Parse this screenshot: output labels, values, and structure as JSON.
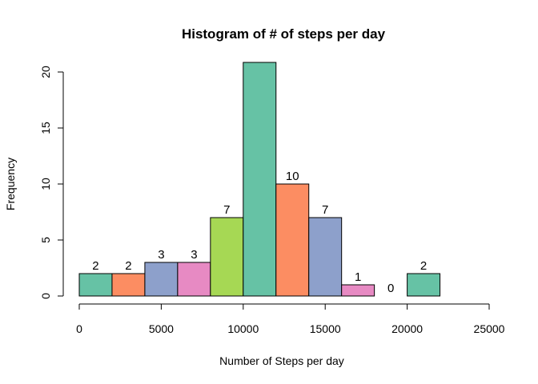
{
  "chart_data": {
    "type": "bar",
    "title": "Histogram of # of steps per day",
    "xlabel": "Number of Steps per day",
    "ylabel": "Frequency",
    "xlim": [
      0,
      25000
    ],
    "ylim": [
      0,
      20
    ],
    "x_ticks": [
      0,
      5000,
      10000,
      15000,
      20000,
      25000
    ],
    "y_ticks": [
      0,
      5,
      10,
      15,
      20
    ],
    "bins": [
      {
        "start": 0,
        "end": 2000,
        "value": 2,
        "color": "#66C2A5",
        "label": "2"
      },
      {
        "start": 2000,
        "end": 4000,
        "value": 2,
        "color": "#FC8D62",
        "label": "2"
      },
      {
        "start": 4000,
        "end": 6000,
        "value": 3,
        "color": "#8DA0CB",
        "label": "3"
      },
      {
        "start": 6000,
        "end": 8000,
        "value": 3,
        "color": "#E78AC3",
        "label": "3"
      },
      {
        "start": 8000,
        "end": 10000,
        "value": 7,
        "color": "#A6D854",
        "label": "7"
      },
      {
        "start": 10000,
        "end": 12000,
        "value": 21,
        "color": "#66C2A5",
        "label": ""
      },
      {
        "start": 12000,
        "end": 14000,
        "value": 10,
        "color": "#FC8D62",
        "label": "10"
      },
      {
        "start": 14000,
        "end": 16000,
        "value": 7,
        "color": "#8DA0CB",
        "label": "7"
      },
      {
        "start": 16000,
        "end": 18000,
        "value": 1,
        "color": "#E78AC3",
        "label": "1"
      },
      {
        "start": 18000,
        "end": 20000,
        "value": 0,
        "color": "#A6D854",
        "label": "0"
      },
      {
        "start": 20000,
        "end": 22000,
        "value": 2,
        "color": "#66C2A5",
        "label": "2"
      }
    ],
    "grid": false,
    "legend": "none"
  }
}
